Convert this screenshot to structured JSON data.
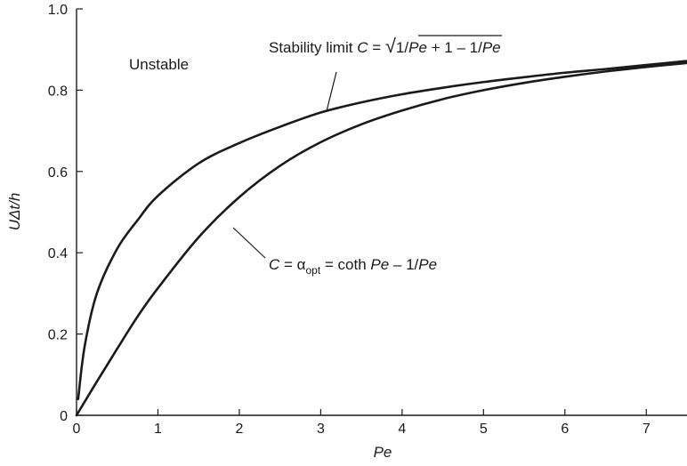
{
  "chart_data": {
    "type": "line",
    "title": "",
    "xlabel": "Pe",
    "ylabel": "UΔt/h",
    "xlim": [
      0,
      7.5
    ],
    "ylim": [
      0,
      1.0
    ],
    "x_ticks": [
      "0",
      "1",
      "2",
      "3",
      "4",
      "5",
      "6",
      "7"
    ],
    "y_ticks": [
      "0",
      "0.2",
      "0.4",
      "0.6",
      "0.8",
      "1.0"
    ],
    "grid": false,
    "series": [
      {
        "name": "Stability limit",
        "x": [
          0.02,
          0.1,
          0.25,
          0.5,
          0.75,
          1.0,
          1.5,
          2.0,
          2.5,
          3.0,
          3.5,
          4.0,
          4.5,
          5.0,
          5.5,
          6.0,
          6.5,
          7.0,
          7.5
        ],
        "y": [
          0.04,
          0.17,
          0.3,
          0.41,
          0.48,
          0.54,
          0.62,
          0.67,
          0.71,
          0.745,
          0.77,
          0.79,
          0.806,
          0.82,
          0.832,
          0.843,
          0.852,
          0.862,
          0.872
        ]
      },
      {
        "name": "Optimal alpha",
        "x": [
          0.0,
          0.25,
          0.5,
          0.75,
          1.0,
          1.5,
          2.0,
          2.5,
          3.0,
          3.5,
          4.0,
          4.5,
          5.0,
          5.5,
          6.0,
          6.5,
          7.0,
          7.5
        ],
        "y": [
          0.0,
          0.083,
          0.164,
          0.243,
          0.313,
          0.438,
          0.537,
          0.614,
          0.672,
          0.716,
          0.75,
          0.778,
          0.8,
          0.818,
          0.833,
          0.846,
          0.857,
          0.867
        ]
      }
    ],
    "annotations": {
      "unstable": "Unstable",
      "stability": {
        "prefix": "Stability limit ",
        "c": "C",
        "eq": " = ",
        "radical": "√",
        "r1": "1/",
        "r2": "Pe",
        "r3": " + 1",
        "tail1": " – 1/",
        "tail2": "Pe"
      },
      "optimal": {
        "c": "C",
        "eq": " = ",
        "alpha": "α",
        "sub": "opt",
        "mid": " = coth ",
        "pe1": "Pe",
        "tail": " – 1/",
        "pe2": "Pe"
      }
    },
    "colors": {
      "line": "#1a1a1a",
      "background": "#ffffff"
    }
  }
}
